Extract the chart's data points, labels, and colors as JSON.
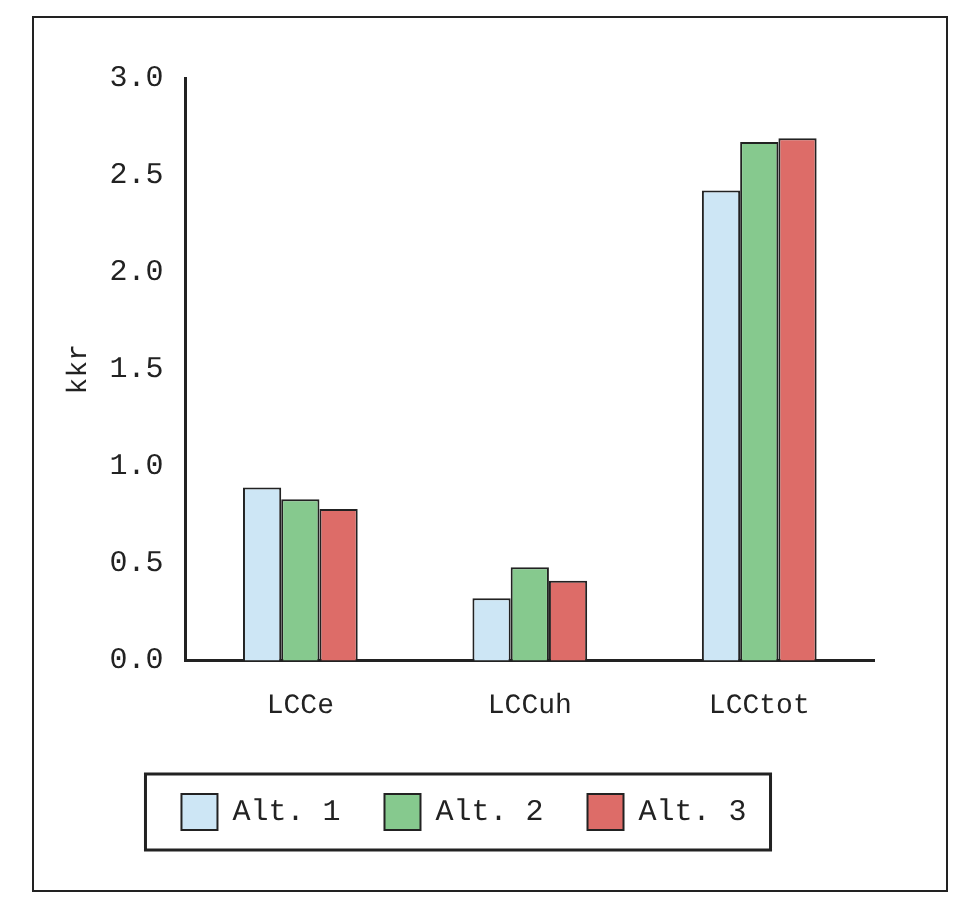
{
  "chart_data": {
    "type": "bar",
    "ylabel": "kkr",
    "categories": [
      "LCCe",
      "LCCuh",
      "LCCtot"
    ],
    "series": [
      {
        "name": "Alt. 1",
        "color": "#cde6f5",
        "values": [
          0.89,
          0.32,
          2.42
        ]
      },
      {
        "name": "Alt. 2",
        "color": "#86c98e",
        "values": [
          0.83,
          0.48,
          2.67
        ]
      },
      {
        "name": "Alt. 3",
        "color": "#dd6c68",
        "values": [
          0.78,
          0.41,
          2.69
        ]
      }
    ],
    "ylim": [
      0,
      3
    ],
    "yticks": [
      {
        "value": 0,
        "label": "0.0"
      },
      {
        "value": 0.5,
        "label": "0.5"
      },
      {
        "value": 1,
        "label": "1.0"
      },
      {
        "value": 1.5,
        "label": "1.5"
      },
      {
        "value": 2,
        "label": "2.0"
      },
      {
        "value": 2.5,
        "label": "2.5"
      },
      {
        "value": 3,
        "label": "3.0"
      }
    ],
    "grid": false,
    "legend": "bottom"
  }
}
